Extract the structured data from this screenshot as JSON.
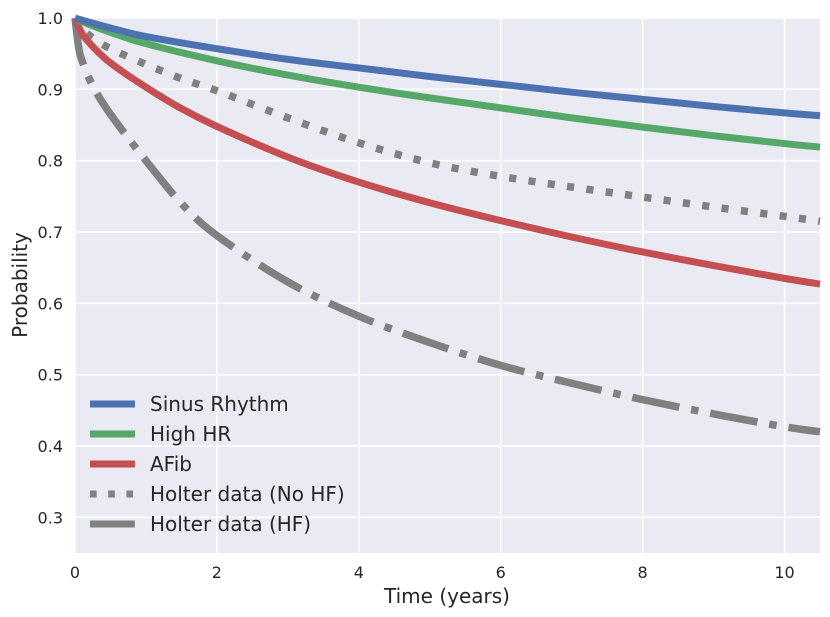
{
  "chart_data": {
    "type": "line",
    "title": "",
    "xlabel": "Time (years)",
    "ylabel": "Probability",
    "xlim": [
      0,
      10.5
    ],
    "ylim": [
      0.25,
      1.0
    ],
    "xticks": [
      0,
      2,
      4,
      6,
      8,
      10
    ],
    "xtick_labels": [
      "0",
      "2",
      "4",
      "6",
      "8",
      "10"
    ],
    "yticks": [
      0.3,
      0.4,
      0.5,
      0.6,
      0.7,
      0.8,
      0.9,
      1.0
    ],
    "ytick_labels": [
      "0.3",
      "0.4",
      "0.5",
      "0.6",
      "0.7",
      "0.8",
      "0.9",
      "1.0"
    ],
    "grid": true,
    "legend_position": "lower-left",
    "series": [
      {
        "name": "Sinus Rhythm",
        "color": "#4c72b0",
        "style": "solid",
        "x": [
          0,
          0.1,
          0.5,
          1,
          2,
          3,
          4,
          5,
          6,
          7,
          8,
          9,
          10,
          10.5
        ],
        "y": [
          1.0,
          0.997,
          0.986,
          0.974,
          0.957,
          0.942,
          0.93,
          0.918,
          0.907,
          0.896,
          0.886,
          0.876,
          0.867,
          0.863
        ]
      },
      {
        "name": "High HR",
        "color": "#55a868",
        "style": "solid",
        "x": [
          0,
          0.1,
          0.5,
          1,
          2,
          3,
          4,
          5,
          6,
          7,
          8,
          9,
          10,
          10.5
        ],
        "y": [
          1.0,
          0.995,
          0.98,
          0.964,
          0.94,
          0.92,
          0.903,
          0.888,
          0.874,
          0.86,
          0.847,
          0.835,
          0.824,
          0.819
        ]
      },
      {
        "name": "AFib",
        "color": "#c44e52",
        "style": "solid",
        "x": [
          0,
          0.1,
          0.25,
          0.5,
          1,
          1.5,
          2,
          3,
          4,
          5,
          6,
          7,
          8,
          9,
          10,
          10.5
        ],
        "y": [
          1.0,
          0.978,
          0.96,
          0.937,
          0.903,
          0.873,
          0.848,
          0.805,
          0.77,
          0.741,
          0.716,
          0.693,
          0.672,
          0.653,
          0.635,
          0.627
        ]
      },
      {
        "name": "Holter data (No HF)",
        "color": "#808080",
        "style": "dotted",
        "x": [
          0,
          0.1,
          0.25,
          0.5,
          1,
          1.5,
          2,
          3,
          4,
          5,
          6,
          7,
          8,
          9,
          10,
          10.5
        ],
        "y": [
          1.0,
          0.985,
          0.972,
          0.957,
          0.935,
          0.915,
          0.898,
          0.86,
          0.825,
          0.797,
          0.778,
          0.763,
          0.749,
          0.735,
          0.722,
          0.715
        ]
      },
      {
        "name": "Holter data (HF)",
        "color": "#808080",
        "style": "dashdot",
        "x": [
          0,
          0.05,
          0.1,
          0.25,
          0.5,
          1,
          1.5,
          2,
          3,
          4,
          5,
          6,
          7,
          8,
          9,
          10,
          10.5
        ],
        "y": [
          1.0,
          0.96,
          0.94,
          0.905,
          0.865,
          0.8,
          0.74,
          0.695,
          0.63,
          0.582,
          0.545,
          0.513,
          0.488,
          0.465,
          0.445,
          0.427,
          0.42
        ]
      }
    ]
  }
}
